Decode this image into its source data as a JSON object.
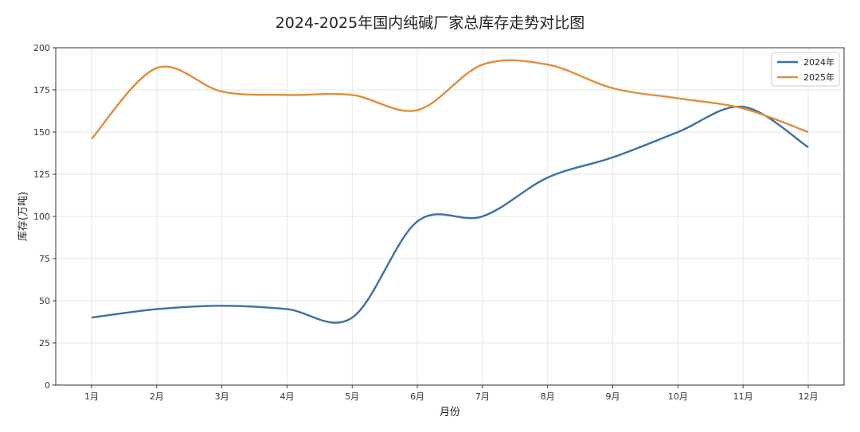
{
  "chart_data": {
    "type": "line",
    "title": "2024-2025年国内纯碱厂家总库存走势对比图",
    "xlabel": "月份",
    "ylabel": "库存(万吨)",
    "categories": [
      "1月",
      "2月",
      "3月",
      "4月",
      "5月",
      "6月",
      "7月",
      "8月",
      "9月",
      "10月",
      "11月",
      "12月"
    ],
    "ylim": [
      0,
      200
    ],
    "yticks": [
      0,
      25,
      50,
      75,
      100,
      125,
      150,
      175,
      200
    ],
    "grid": true,
    "legend_position": "top-right",
    "series": [
      {
        "name": "2024年",
        "color": "#3d6fa3",
        "values": [
          40,
          45,
          47,
          45,
          40,
          97,
          100,
          123,
          135,
          150,
          165,
          141
        ]
      },
      {
        "name": "2025年",
        "color": "#e08d3c",
        "values": [
          146,
          188,
          174,
          172,
          172,
          163,
          190,
          190,
          176,
          170,
          164,
          150
        ]
      }
    ]
  }
}
